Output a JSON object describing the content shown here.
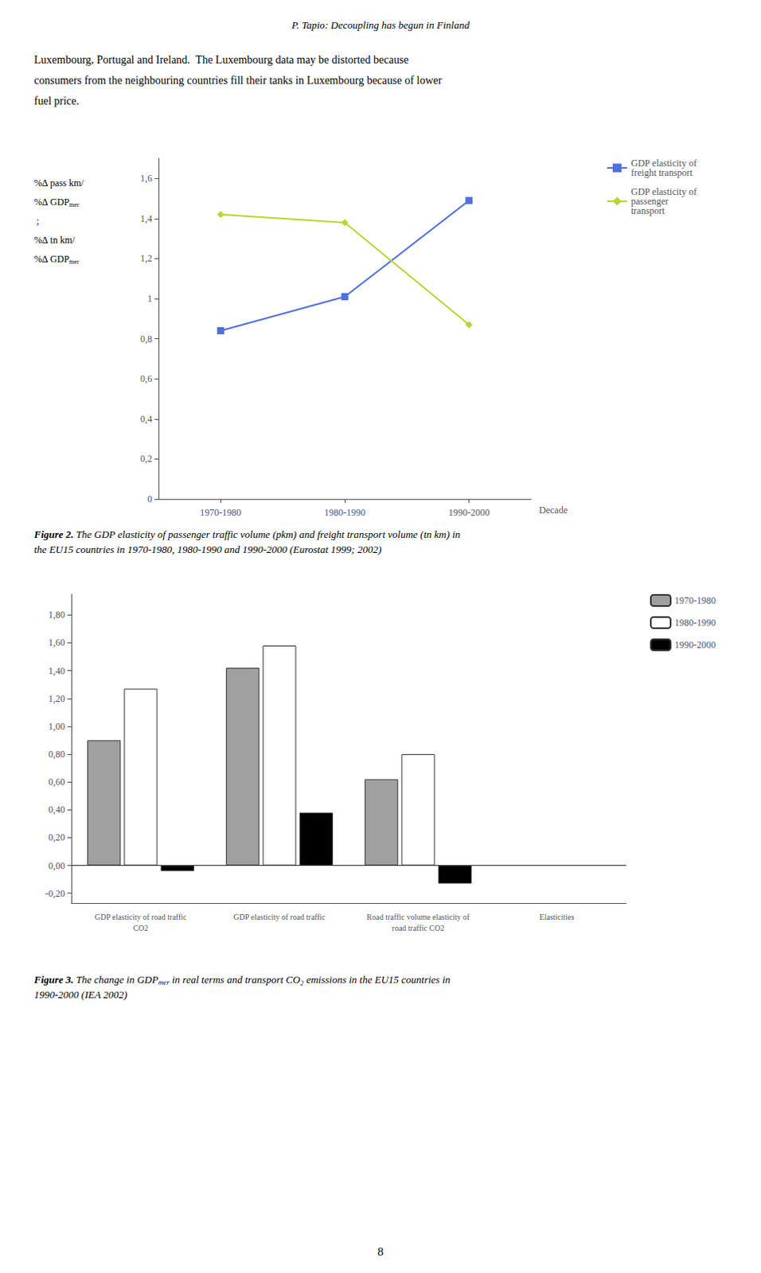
{
  "title": "P. Tapio: Decoupling has begun in Finland",
  "text": [
    "Luxembourg, Portugal and Ireland.  The Luxembourg data may be distorted because",
    "consumers from the neighbouring countries fill their tanks in Luxembourg because of lower",
    "fuel price."
  ],
  "page_number": "8",
  "chart_data": [
    {
      "type": "line",
      "categories": [
        "1970-1980",
        "1980-1990",
        "1990-2000"
      ],
      "series": [
        {
          "name": "GDP elasticity of\nfreight transport",
          "values": [
            0.84,
            1.01,
            1.49
          ],
          "marker": "square"
        },
        {
          "name": "GDP elasticity of\npassenger\ntransport",
          "values": [
            1.42,
            1.38,
            0.87
          ],
          "marker": "diamond"
        }
      ],
      "xlabel": "Decade",
      "ylabel": [
        [
          "%∆ pass km/"
        ],
        [
          "%∆ GDP",
          {
            "sub": "mer"
          }
        ],
        [
          " ;"
        ],
        [
          "%∆ tn km/"
        ],
        [
          "%∆ GDP",
          {
            "sub": "mer"
          }
        ]
      ],
      "ylim": [
        0,
        1.7
      ],
      "yticks": [
        0,
        {
          "value": 0.2,
          "label": "0,2"
        },
        {
          "value": 0.4,
          "label": "0,4"
        },
        {
          "value": 0.6,
          "label": "0,6"
        },
        {
          "value": 0.8,
          "label": "0,8"
        },
        1,
        {
          "value": 1.2,
          "label": "1,2"
        },
        {
          "value": 1.4,
          "label": "1,4"
        },
        {
          "value": 1.6,
          "label": "1,6"
        }
      ],
      "grid": false,
      "legend": "right",
      "caption_bold": "Figure 2.",
      "caption": [
        " The GDP elasticity of passenger traffic volume (pkm) and freight transport volume (tn km) in\nthe EU15 countries in 1970-1980, 1980-1990 and 1990-2000 (Eurostat 1999; 2002)"
      ]
    },
    {
      "type": "bar",
      "categories": [
        "GDP elasticity of road traffic\nCO2",
        "GDP elasticity of road traffic",
        "Road traffic volume elasticity of\nroad traffic CO2",
        "Elasticities"
      ],
      "series": [
        {
          "name": "1970-1980",
          "color": "#A0A0A0",
          "values": [
            0.9,
            1.42,
            0.62,
            null
          ]
        },
        {
          "name": "1980-1990",
          "color": "#FFFFFF",
          "values": [
            1.27,
            1.58,
            0.8,
            null
          ]
        },
        {
          "name": "1990-2000",
          "color": "#000000",
          "values": [
            -0.04,
            0.38,
            -0.13,
            null
          ]
        }
      ],
      "ylim": [
        -0.27,
        1.95
      ],
      "yticks": [
        {
          "value": -0.2,
          "label": "-0,20"
        },
        {
          "value": 0.0,
          "label": "0,00"
        },
        {
          "value": 0.2,
          "label": "0,20"
        },
        {
          "value": 0.4,
          "label": "0,40"
        },
        {
          "value": 0.6,
          "label": "0,60"
        },
        {
          "value": 0.8,
          "label": "0,80"
        },
        {
          "value": 1.0,
          "label": "1,00"
        },
        {
          "value": 1.2,
          "label": "1,20"
        },
        {
          "value": 1.4,
          "label": "1,40"
        },
        {
          "value": 1.6,
          "label": "1,60"
        },
        {
          "value": 1.8,
          "label": "1,80"
        }
      ],
      "grid": false,
      "legend": "right",
      "caption_bold": "Figure 3.",
      "caption": [
        " The change in GDP",
        {
          "sub": "mer"
        },
        " in real terms and transport CO₂ emissions in the EU15 countries in\n1990-2000 (IEA 2002)"
      ]
    }
  ]
}
